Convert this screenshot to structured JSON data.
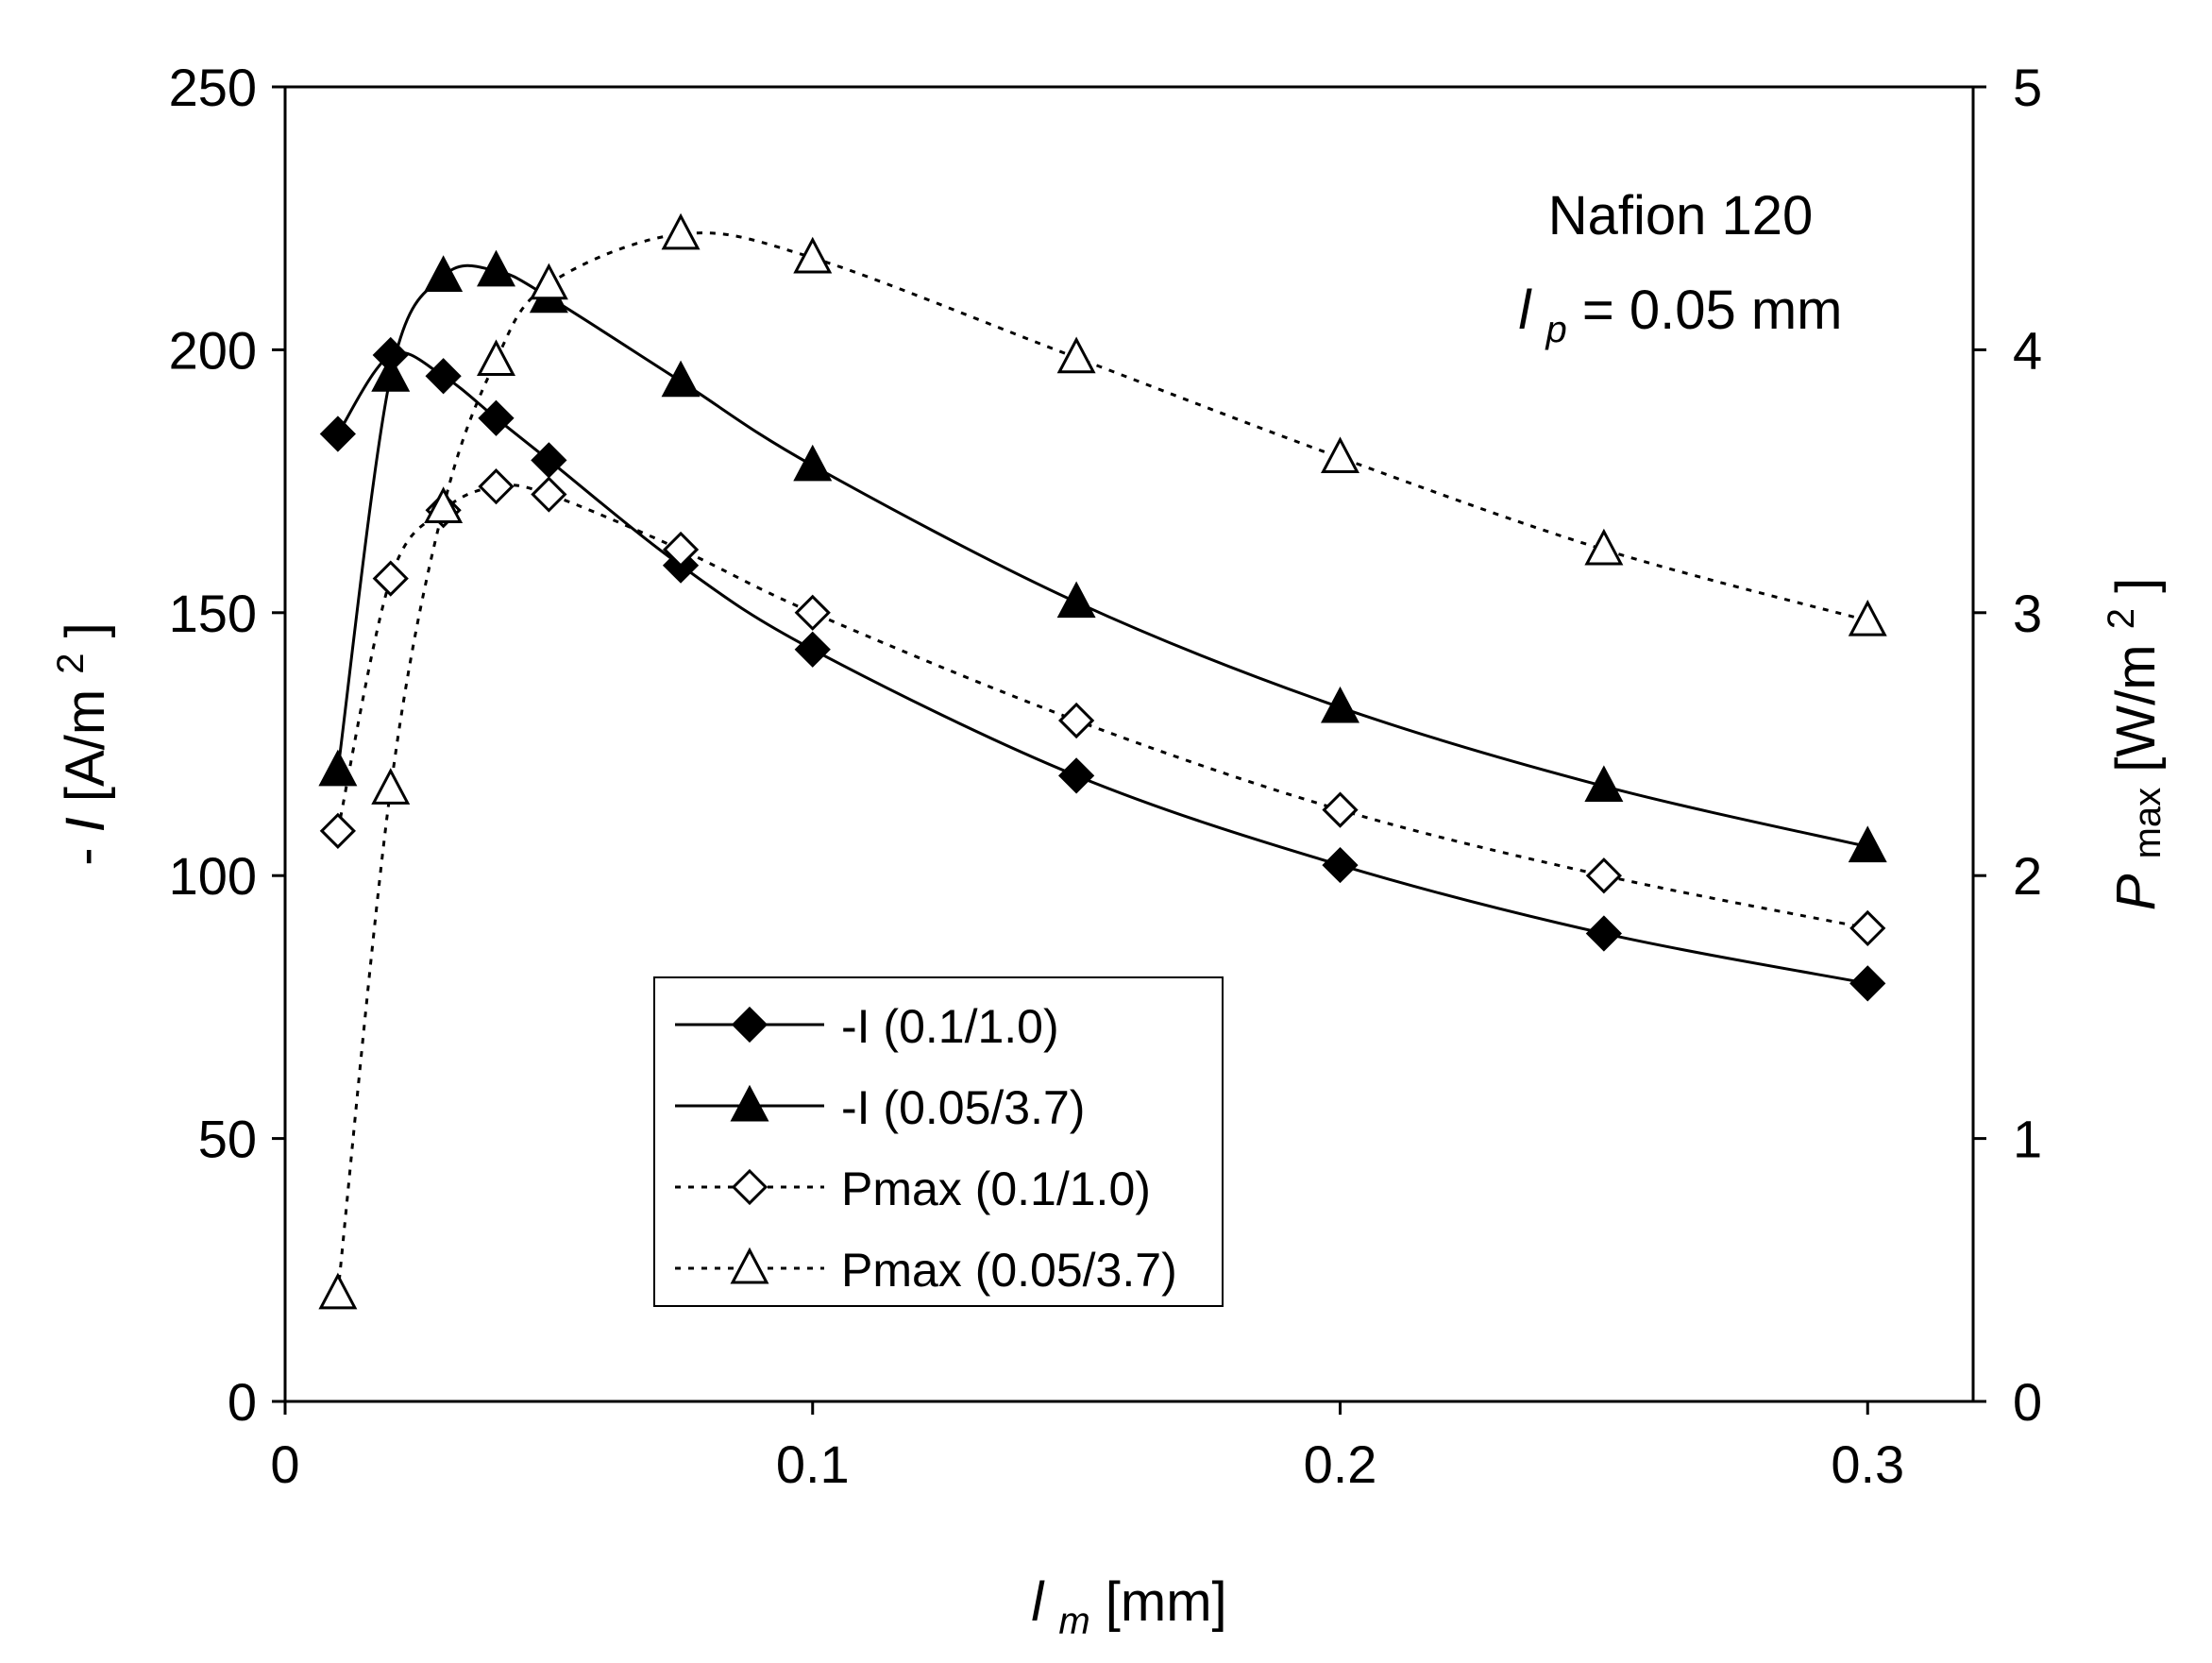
{
  "chart_data": {
    "type": "line",
    "annotation": {
      "line1": "Nafion 120",
      "line2_symbol": "l",
      "line2_sub": "p",
      "line2_rest": " = 0.05 mm"
    },
    "x_axis": {
      "label_symbol": "l",
      "label_sub": "m",
      "label_rest": " [mm]",
      "range": [
        0,
        0.32
      ],
      "ticks": [
        0,
        0.1,
        0.2,
        0.3
      ],
      "tick_labels": [
        "0",
        "0.1",
        "0.2",
        "0.3"
      ]
    },
    "y_axis_left": {
      "label_prefix": "-",
      "label_symbol": "I",
      "label_rest": " [A/m",
      "label_sup": "2",
      "label_close": "]",
      "range": [
        0,
        250
      ],
      "ticks": [
        0,
        50,
        100,
        150,
        200,
        250
      ],
      "tick_labels": [
        "0",
        "50",
        "100",
        "150",
        "200",
        "250"
      ]
    },
    "y_axis_right": {
      "label_symbol": "P",
      "label_sub": "max",
      "label_rest": " [W/m",
      "label_sup": "2",
      "label_close": "]",
      "range": [
        0,
        5
      ],
      "ticks": [
        0,
        1,
        2,
        3,
        4,
        5
      ],
      "tick_labels": [
        "0",
        "1",
        "2",
        "3",
        "4",
        "5"
      ]
    },
    "grid": false,
    "legend_position": "bottom-center",
    "series": [
      {
        "name": "-I (0.1/1.0)",
        "axis": "left",
        "marker": "diamond-filled",
        "line": "solid",
        "x": [
          0.01,
          0.02,
          0.03,
          0.04,
          0.05,
          0.075,
          0.1,
          0.15,
          0.2,
          0.25,
          0.3
        ],
        "y": [
          184,
          199,
          195,
          187,
          179,
          159,
          143,
          119,
          102,
          89,
          79.5
        ]
      },
      {
        "name": "-I (0.05/3.7)",
        "axis": "left",
        "marker": "triangle-filled",
        "line": "solid",
        "x": [
          0.01,
          0.02,
          0.03,
          0.04,
          0.05,
          0.075,
          0.1,
          0.15,
          0.2,
          0.25,
          0.3
        ],
        "y": [
          120,
          195,
          214,
          215,
          210,
          194,
          178,
          152,
          132,
          117,
          105.5
        ]
      },
      {
        "name": "Pmax (0.1/1.0)",
        "axis": "right",
        "marker": "diamond-open",
        "line": "dotted",
        "x": [
          0.01,
          0.02,
          0.03,
          0.04,
          0.05,
          0.075,
          0.1,
          0.15,
          0.2,
          0.25,
          0.3
        ],
        "y": [
          2.17,
          3.13,
          3.39,
          3.48,
          3.45,
          3.24,
          3.0,
          2.59,
          2.25,
          2.0,
          1.8
        ]
      },
      {
        "name": "Pmax (0.05/3.7)",
        "axis": "right",
        "marker": "triangle-open",
        "line": "dotted",
        "x": [
          0.01,
          0.02,
          0.03,
          0.04,
          0.05,
          0.075,
          0.1,
          0.15,
          0.2,
          0.25,
          0.3
        ],
        "y": [
          0.41,
          2.33,
          3.4,
          3.96,
          4.25,
          4.44,
          4.35,
          3.97,
          3.59,
          3.24,
          2.97
        ]
      }
    ]
  }
}
